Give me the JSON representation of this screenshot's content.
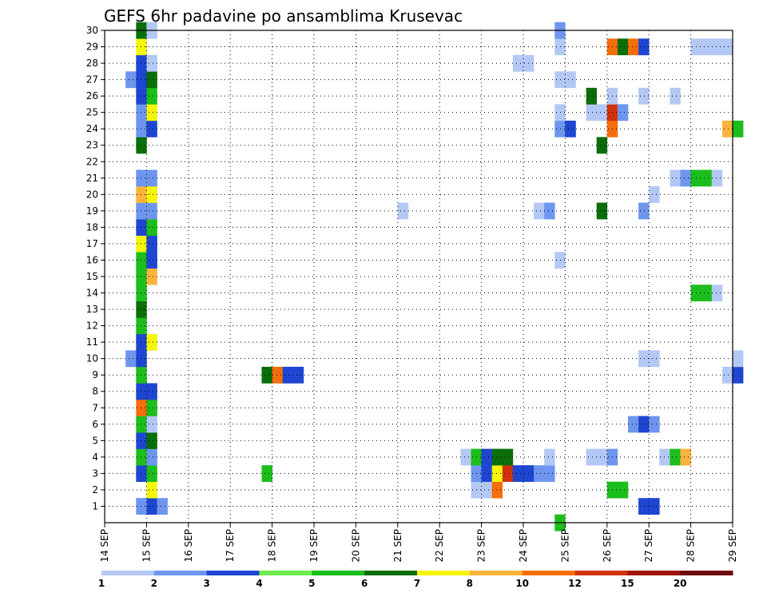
{
  "chart_data": {
    "type": "heatmap",
    "title": "GEFS 6hr padavine po ansamblima Krusevac",
    "y_ticks": [
      "1",
      "2",
      "3",
      "4",
      "5",
      "6",
      "7",
      "8",
      "9",
      "10",
      "11",
      "12",
      "13",
      "14",
      "15",
      "16",
      "17",
      "18",
      "19",
      "20",
      "21",
      "22",
      "23",
      "24",
      "25",
      "26",
      "27",
      "28",
      "29",
      "30"
    ],
    "ylim": [
      0,
      30
    ],
    "x_ticks": [
      "14 SEP",
      "15 SEP",
      "16 SEP",
      "17 SEP",
      "18 SEP",
      "19 SEP",
      "20 SEP",
      "21 SEP",
      "22 SEP",
      "23 SEP",
      "24 SEP",
      "25 SEP",
      "26 SEP",
      "27 SEP",
      "28 SEP",
      "29 SEP"
    ],
    "x_range_days": [
      14,
      29
    ],
    "grid": true,
    "legend": {
      "placement": "bottom",
      "colors": [
        "#b4c8f5",
        "#6e96ee",
        "#1e46d2",
        "#6eee4e",
        "#1cbe1c",
        "#0a6e0a",
        "#f5f50a",
        "#fab43c",
        "#f56e0a",
        "#d2320a",
        "#a0140a",
        "#6e0a0a"
      ],
      "labels": [
        "1",
        "2",
        "3",
        "4",
        "5",
        "6",
        "7",
        "8",
        "10",
        "12",
        "15",
        "20"
      ]
    },
    "cells": [
      [
        15.0,
        1,
        3
      ],
      [
        15.25,
        1,
        2
      ],
      [
        14.5,
        10,
        2
      ],
      [
        14.5,
        27,
        2
      ],
      [
        14.75,
        1,
        2
      ],
      [
        14.75,
        3,
        3
      ],
      [
        14.75,
        4,
        5
      ],
      [
        14.75,
        5,
        3
      ],
      [
        14.75,
        6,
        5
      ],
      [
        14.75,
        7,
        10
      ],
      [
        14.75,
        8,
        3
      ],
      [
        14.75,
        9,
        5
      ],
      [
        14.75,
        10,
        3
      ],
      [
        14.75,
        11,
        3
      ],
      [
        14.75,
        12,
        5
      ],
      [
        14.75,
        13,
        6
      ],
      [
        14.75,
        14,
        5
      ],
      [
        14.75,
        15,
        5
      ],
      [
        14.75,
        16,
        5
      ],
      [
        14.75,
        17,
        7
      ],
      [
        14.75,
        18,
        3
      ],
      [
        14.75,
        19,
        2
      ],
      [
        14.75,
        20,
        8
      ],
      [
        14.75,
        21,
        2
      ],
      [
        14.75,
        23,
        6
      ],
      [
        14.75,
        24,
        2
      ],
      [
        14.75,
        25,
        2
      ],
      [
        14.75,
        26,
        3
      ],
      [
        14.75,
        27,
        3
      ],
      [
        14.75,
        28,
        3
      ],
      [
        14.75,
        29,
        7
      ],
      [
        14.75,
        30,
        6
      ],
      [
        15.0,
        2,
        7
      ],
      [
        15.0,
        3,
        5
      ],
      [
        15.0,
        4,
        2
      ],
      [
        15.0,
        5,
        6
      ],
      [
        15.0,
        6,
        1
      ],
      [
        15.0,
        7,
        5
      ],
      [
        15.0,
        8,
        3
      ],
      [
        15.0,
        11,
        7
      ],
      [
        15.0,
        15,
        8
      ],
      [
        15.0,
        16,
        3
      ],
      [
        15.0,
        17,
        3
      ],
      [
        15.0,
        18,
        5
      ],
      [
        15.0,
        19,
        2
      ],
      [
        15.0,
        20,
        7
      ],
      [
        15.0,
        21,
        2
      ],
      [
        15.0,
        24,
        3
      ],
      [
        15.0,
        25,
        7
      ],
      [
        15.0,
        26,
        5
      ],
      [
        15.0,
        27,
        6
      ],
      [
        15.0,
        28,
        1
      ],
      [
        15.0,
        30,
        1
      ],
      [
        17.75,
        3,
        5
      ],
      [
        17.75,
        9,
        6
      ],
      [
        18.0,
        9,
        10
      ],
      [
        18.25,
        9,
        3
      ],
      [
        18.5,
        9,
        3
      ],
      [
        21.0,
        19,
        1
      ],
      [
        22.5,
        4,
        1
      ],
      [
        22.75,
        2,
        1
      ],
      [
        22.75,
        3,
        2
      ],
      [
        22.75,
        4,
        5
      ],
      [
        23.0,
        2,
        1
      ],
      [
        23.0,
        3,
        3
      ],
      [
        23.0,
        4,
        3
      ],
      [
        23.25,
        2,
        10
      ],
      [
        23.25,
        3,
        7
      ],
      [
        23.25,
        4,
        6
      ],
      [
        23.5,
        3,
        12
      ],
      [
        23.5,
        4,
        6
      ],
      [
        23.75,
        3,
        3
      ],
      [
        23.75,
        28,
        1
      ],
      [
        24.0,
        3,
        3
      ],
      [
        24.0,
        28,
        1
      ],
      [
        24.25,
        3,
        2
      ],
      [
        24.25,
        19,
        1
      ],
      [
        24.5,
        3,
        2
      ],
      [
        24.5,
        4,
        1
      ],
      [
        24.5,
        19,
        2
      ],
      [
        24.75,
        0,
        5
      ],
      [
        24.75,
        16,
        1
      ],
      [
        24.75,
        24,
        2
      ],
      [
        24.75,
        25,
        1
      ],
      [
        24.75,
        27,
        1
      ],
      [
        24.75,
        29,
        1
      ],
      [
        24.75,
        30,
        2
      ],
      [
        25.0,
        24,
        3
      ],
      [
        25.0,
        27,
        1
      ],
      [
        25.5,
        4,
        1
      ],
      [
        25.5,
        25,
        1
      ],
      [
        25.5,
        26,
        6
      ],
      [
        25.75,
        4,
        1
      ],
      [
        25.75,
        19,
        6
      ],
      [
        25.75,
        23,
        6
      ],
      [
        25.75,
        25,
        1
      ],
      [
        26.0,
        2,
        5
      ],
      [
        26.0,
        4,
        2
      ],
      [
        26.0,
        24,
        10
      ],
      [
        26.0,
        25,
        12
      ],
      [
        26.0,
        26,
        1
      ],
      [
        26.0,
        29,
        10
      ],
      [
        26.25,
        2,
        5
      ],
      [
        26.25,
        25,
        2
      ],
      [
        26.25,
        29,
        6
      ],
      [
        26.5,
        6,
        2
      ],
      [
        26.5,
        29,
        10
      ],
      [
        26.75,
        1,
        3
      ],
      [
        26.75,
        6,
        3
      ],
      [
        26.75,
        10,
        1
      ],
      [
        26.75,
        19,
        2
      ],
      [
        26.75,
        26,
        1
      ],
      [
        26.75,
        29,
        3
      ],
      [
        27.0,
        1,
        3
      ],
      [
        27.0,
        6,
        2
      ],
      [
        27.0,
        10,
        1
      ],
      [
        27.0,
        20,
        1
      ],
      [
        27.25,
        4,
        1
      ],
      [
        27.5,
        4,
        5
      ],
      [
        27.5,
        21,
        1
      ],
      [
        27.5,
        26,
        1
      ],
      [
        27.75,
        4,
        8
      ],
      [
        27.75,
        21,
        2
      ],
      [
        28.0,
        14,
        5
      ],
      [
        28.0,
        21,
        5
      ],
      [
        28.0,
        29,
        1
      ],
      [
        28.25,
        14,
        5
      ],
      [
        28.25,
        21,
        5
      ],
      [
        28.25,
        29,
        1
      ],
      [
        28.5,
        14,
        1
      ],
      [
        28.5,
        21,
        1
      ],
      [
        28.5,
        29,
        1
      ],
      [
        28.75,
        9,
        1
      ],
      [
        28.75,
        24,
        8
      ],
      [
        28.75,
        29,
        1
      ],
      [
        29.0,
        9,
        3
      ],
      [
        29.0,
        10,
        1
      ],
      [
        29.0,
        24,
        5
      ]
    ]
  }
}
